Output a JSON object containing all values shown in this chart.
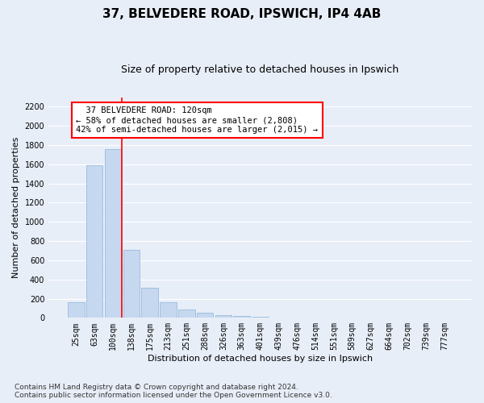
{
  "title1": "37, BELVEDERE ROAD, IPSWICH, IP4 4AB",
  "title2": "Size of property relative to detached houses in Ipswich",
  "xlabel": "Distribution of detached houses by size in Ipswich",
  "ylabel": "Number of detached properties",
  "footnote": "Contains HM Land Registry data © Crown copyright and database right 2024.\nContains public sector information licensed under the Open Government Licence v3.0.",
  "bar_labels": [
    "25sqm",
    "63sqm",
    "100sqm",
    "138sqm",
    "175sqm",
    "213sqm",
    "251sqm",
    "288sqm",
    "326sqm",
    "363sqm",
    "401sqm",
    "439sqm",
    "476sqm",
    "514sqm",
    "551sqm",
    "589sqm",
    "627sqm",
    "664sqm",
    "702sqm",
    "739sqm",
    "777sqm"
  ],
  "bar_values": [
    160,
    1590,
    1760,
    710,
    315,
    160,
    85,
    52,
    30,
    20,
    15,
    0,
    0,
    0,
    0,
    0,
    0,
    0,
    0,
    0,
    0
  ],
  "bar_color": "#c5d8f0",
  "bar_edge_color": "#8ab4d8",
  "vline_x": 2.5,
  "vline_color": "red",
  "annotation_text": "  37 BELVEDERE ROAD: 120sqm\n← 58% of detached houses are smaller (2,808)\n42% of semi-detached houses are larger (2,015) →",
  "annotation_box_color": "white",
  "annotation_box_edge_color": "red",
  "ylim": [
    0,
    2300
  ],
  "yticks": [
    0,
    200,
    400,
    600,
    800,
    1000,
    1200,
    1400,
    1600,
    1800,
    2000,
    2200
  ],
  "bg_color": "#e8eef8",
  "plot_bg_color": "#e8eef8",
  "grid_color": "#ffffff",
  "title1_fontsize": 11,
  "title2_fontsize": 9,
  "label_fontsize": 8,
  "tick_fontsize": 7,
  "footnote_fontsize": 6.5
}
